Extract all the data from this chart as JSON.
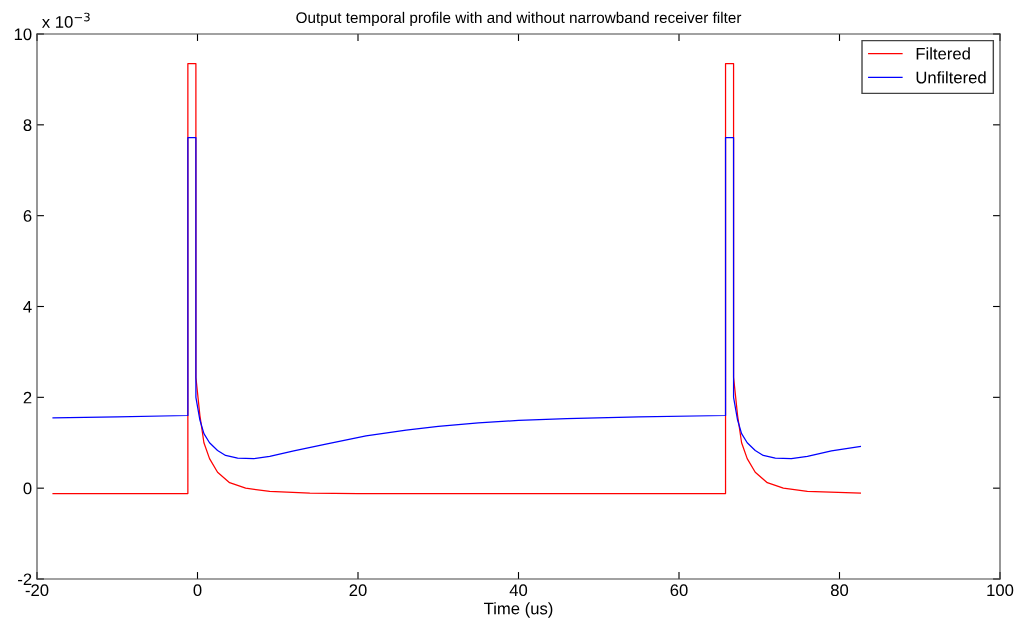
{
  "chart_data": {
    "type": "line",
    "title": "Output temporal profile with and without narrowband receiver filter",
    "xlabel": "Time (us)",
    "annotations": [
      "x 10$^{−3}$"
    ],
    "xlim": [
      -20,
      100
    ],
    "xticks": [
      -20,
      0,
      20,
      40,
      60,
      80,
      100
    ],
    "ylim": [
      -2,
      10
    ],
    "yticks": [
      -2,
      0,
      2,
      4,
      6,
      8,
      10
    ],
    "grid": false,
    "legend": "top right",
    "marker": "none",
    "line_style": "solid",
    "series": [
      {
        "name": "Filtered",
        "color": "#ff0000",
        "x": [
          -18,
          -1.2,
          -1.2,
          -0.2,
          -0.2,
          0.3,
          0.8,
          1.5,
          2.5,
          4,
          6,
          9,
          14,
          20,
          65.8,
          65.8,
          66.8,
          66.8,
          67.3,
          67.8,
          68.5,
          69.5,
          71,
          73,
          76,
          82.6
        ],
        "values": [
          -0.12,
          -0.12,
          9.35,
          9.35,
          2.44,
          1.6,
          1.0,
          0.65,
          0.35,
          0.12,
          0.0,
          -0.07,
          -0.11,
          -0.12,
          -0.12,
          9.35,
          9.35,
          2.44,
          1.6,
          1.0,
          0.65,
          0.35,
          0.12,
          0.0,
          -0.07,
          -0.11
        ]
      },
      {
        "name": "Unfiltered",
        "color": "#0000ff",
        "x": [
          -18,
          -10,
          -1.2,
          -1.2,
          -0.2,
          -0.2,
          0.3,
          0.8,
          1.5,
          2.5,
          3.5,
          5,
          7,
          9,
          12,
          16,
          21,
          26,
          30,
          35,
          40,
          46,
          55,
          65.8,
          65.8,
          66.8,
          66.8,
          67.3,
          67.8,
          68.5,
          69.5,
          70.5,
          72,
          74,
          76,
          79,
          82.6
        ],
        "values": [
          1.55,
          1.57,
          1.6,
          7.72,
          7.72,
          2.0,
          1.5,
          1.2,
          1.0,
          0.83,
          0.72,
          0.66,
          0.65,
          0.7,
          0.82,
          0.97,
          1.15,
          1.28,
          1.36,
          1.44,
          1.49,
          1.53,
          1.57,
          1.6,
          7.72,
          7.72,
          2.0,
          1.5,
          1.2,
          1.0,
          0.83,
          0.72,
          0.66,
          0.65,
          0.7,
          0.82,
          0.92
        ]
      }
    ]
  }
}
